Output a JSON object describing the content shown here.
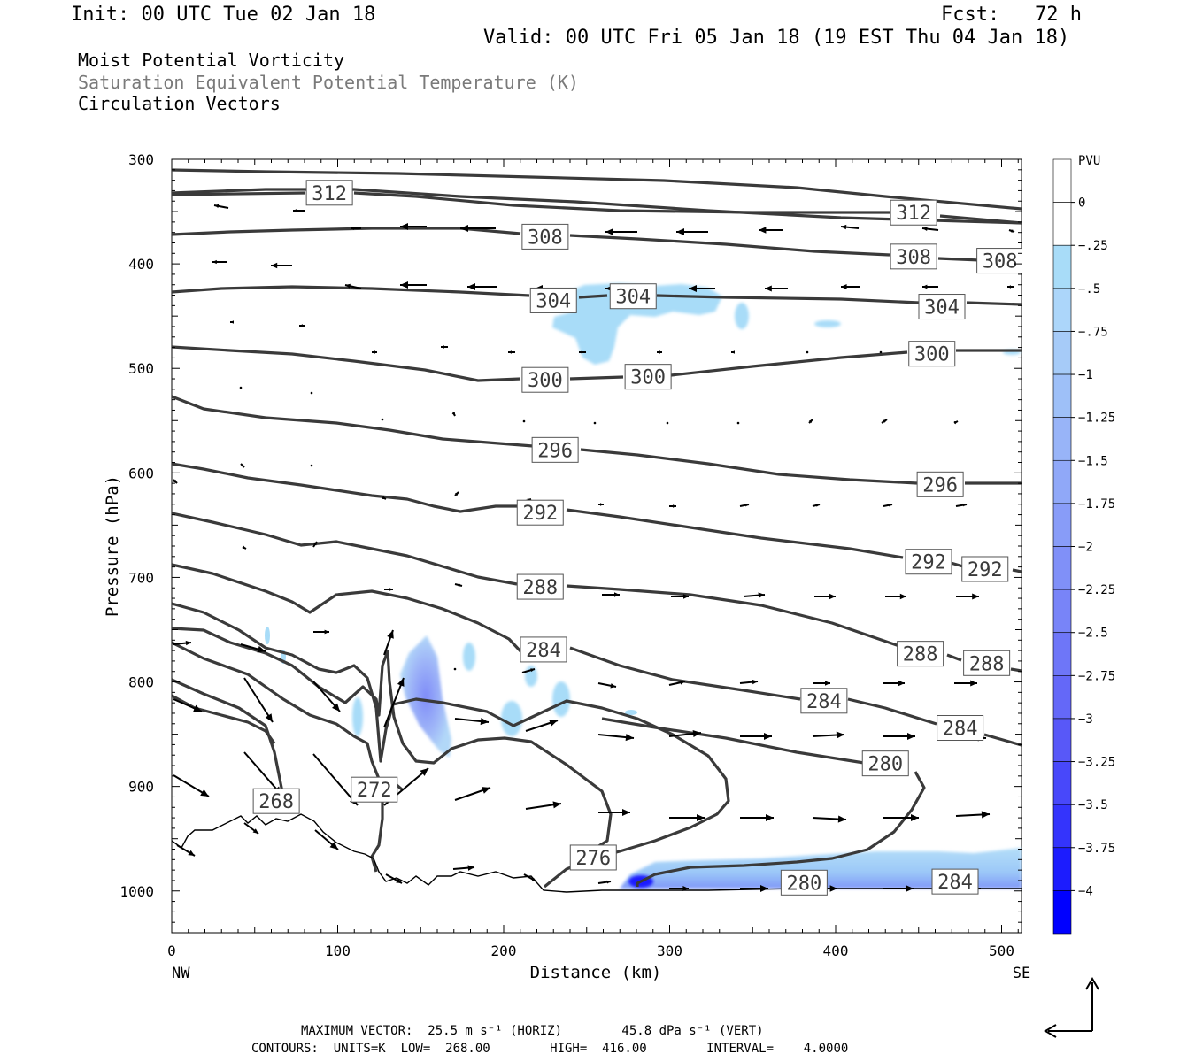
{
  "header": {
    "init": "Init: 00 UTC Tue 02 Jan 18",
    "fcst": "Fcst:   72 h",
    "valid": "Valid: 00 UTC Fri 05 Jan 18 (19 EST Thu 04 Jan 18)",
    "field1": "Moist Potential Vorticity",
    "field2": "Saturation Equivalent Potential Temperature (K)",
    "field3": "Circulation Vectors"
  },
  "footer": {
    "vector_line": "MAXIMUM VECTOR:  25.5 m s⁻¹ (HORIZ)        45.8 dPa s⁻¹ (VERT)",
    "contour_line": "CONTOURS:  UNITS=K  LOW=  268.00        HIGH=  416.00        INTERVAL=    4.0000"
  },
  "colors": {
    "contour": "#3a3a3a",
    "pv_light": "#a8dcf8",
    "pv_deep": "#0000ff"
  },
  "colorbar": {
    "title": "PVU",
    "labels": [
      "0",
      "-.25",
      "-.5",
      "-.75",
      "-1",
      "-1.25",
      "-1.5",
      "-1.75",
      "-2",
      "-2.25",
      "-2.5",
      "-2.75",
      "-3",
      "-3.25",
      "-3.5",
      "-3.75",
      "-4"
    ],
    "colors": [
      "#ffffff",
      "#ffffff",
      "#a8dcf8",
      "#acd6fa",
      "#a6cbf8",
      "#9ec0f8",
      "#98b4f8",
      "#90a8f8",
      "#889cf8",
      "#8090f8",
      "#7884f8",
      "#6e76f8",
      "#6468f8",
      "#5858f8",
      "#4848fa",
      "#3434fc",
      "#1c1cfe",
      "#0000ff"
    ]
  },
  "chart_data": {
    "type": "cross-section",
    "xlabel": "Distance (km)",
    "ylabel": "Pressure (hPa)",
    "xlim": [
      0,
      512
    ],
    "ylim": [
      1040,
      300
    ],
    "x_ticks": [
      0,
      100,
      200,
      300,
      400,
      500
    ],
    "y_ticks": [
      300,
      400,
      500,
      600,
      700,
      800,
      900,
      1000
    ],
    "x_end_labels": {
      "left": "NW",
      "right": "SE"
    },
    "contour_levels_K": [
      268,
      272,
      276,
      280,
      284,
      288,
      292,
      296,
      300,
      304,
      308,
      312
    ],
    "contour_labels": [
      {
        "text": "312",
        "x": 95,
        "p": 332
      },
      {
        "text": "312",
        "x": 447,
        "p": 351
      },
      {
        "text": "308",
        "x": 225,
        "p": 374
      },
      {
        "text": "308",
        "x": 447,
        "p": 393
      },
      {
        "text": "308",
        "x": 499,
        "p": 397
      },
      {
        "text": "304",
        "x": 230,
        "p": 435
      },
      {
        "text": "304",
        "x": 278,
        "p": 431
      },
      {
        "text": "304",
        "x": 464,
        "p": 441
      },
      {
        "text": "300",
        "x": 225,
        "p": 511
      },
      {
        "text": "300",
        "x": 287,
        "p": 508
      },
      {
        "text": "300",
        "x": 458,
        "p": 486
      },
      {
        "text": "296",
        "x": 231,
        "p": 578
      },
      {
        "text": "296",
        "x": 463,
        "p": 611
      },
      {
        "text": "292",
        "x": 222,
        "p": 638
      },
      {
        "text": "292",
        "x": 456,
        "p": 685
      },
      {
        "text": "292",
        "x": 490,
        "p": 692
      },
      {
        "text": "288",
        "x": 222,
        "p": 709
      },
      {
        "text": "288",
        "x": 451,
        "p": 773
      },
      {
        "text": "288",
        "x": 491,
        "p": 782
      },
      {
        "text": "284",
        "x": 224,
        "p": 769
      },
      {
        "text": "284",
        "x": 393,
        "p": 818
      },
      {
        "text": "284",
        "x": 475,
        "p": 844
      },
      {
        "text": "284",
        "x": 472,
        "p": 991
      },
      {
        "text": "280",
        "x": 430,
        "p": 878
      },
      {
        "text": "280",
        "x": 381,
        "p": 992
      },
      {
        "text": "276",
        "x": 254,
        "p": 968
      },
      {
        "text": "272",
        "x": 122,
        "p": 903
      },
      {
        "text": "268",
        "x": 63,
        "p": 914
      }
    ],
    "pv_scale_PVU": {
      "min": -4,
      "max": 0,
      "interval": 0.25
    },
    "max_vector": {
      "horizontal": "25.5 m s-1",
      "vertical": "45.8 dPa s-1"
    }
  }
}
